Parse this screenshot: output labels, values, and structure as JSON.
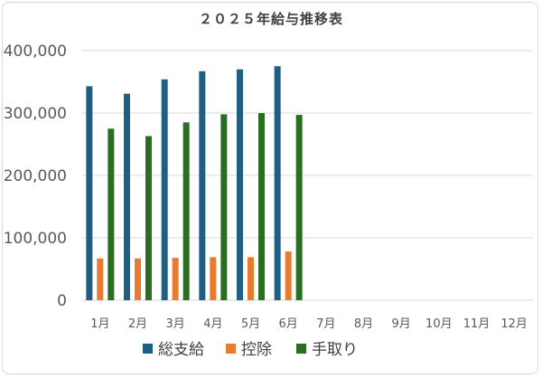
{
  "chart_data": {
    "type": "bar",
    "title": "２０２５年給与推移表",
    "categories": [
      "1月",
      "2月",
      "3月",
      "4月",
      "5月",
      "6月",
      "7月",
      "8月",
      "9月",
      "10月",
      "11月",
      "12月"
    ],
    "series": [
      {
        "name": "総支給",
        "color": "#1f5f83",
        "values": [
          343000,
          331000,
          354000,
          367000,
          370000,
          375000,
          null,
          null,
          null,
          null,
          null,
          null
        ]
      },
      {
        "name": "控除",
        "color": "#e97a2e",
        "values": [
          67000,
          67000,
          68000,
          69000,
          69000,
          78000,
          null,
          null,
          null,
          null,
          null,
          null
        ]
      },
      {
        "name": "手取り",
        "color": "#2a6e22",
        "values": [
          275000,
          263000,
          285000,
          298000,
          300000,
          297000,
          null,
          null,
          null,
          null,
          null,
          null
        ]
      }
    ],
    "ylim": [
      0,
      400000
    ],
    "yticks": [
      0,
      100000,
      200000,
      300000,
      400000
    ],
    "ytick_labels": [
      "0",
      "100,000",
      "200,000",
      "300,000",
      "400,000"
    ],
    "grid": true,
    "legend_position": "bottom"
  }
}
